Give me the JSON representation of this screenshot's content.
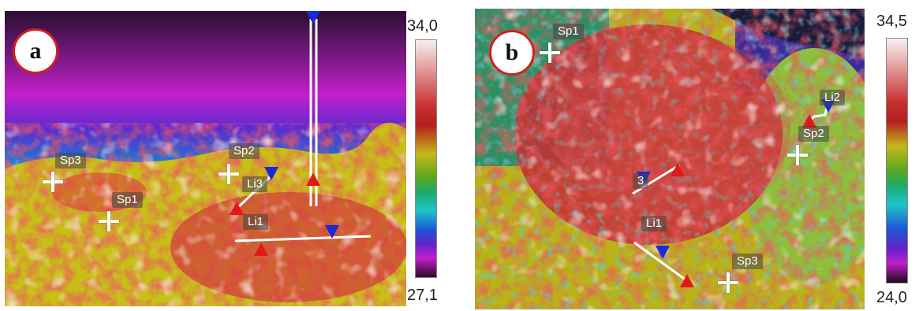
{
  "panels": [
    {
      "label": "a",
      "scale": {
        "max": "34,0",
        "min": "27,1"
      },
      "spots": [
        "Sp1",
        "Sp2",
        "Sp3"
      ],
      "lines": [
        "Li1",
        "Li3"
      ]
    },
    {
      "label": "b",
      "scale": {
        "max": "34,5",
        "min": "24,0"
      },
      "spots": [
        "Sp1",
        "Sp2",
        "Sp3"
      ],
      "lines": [
        "Li1",
        "Li2",
        "3"
      ]
    }
  ],
  "colors": {
    "badge_border": "#d21f1f",
    "marker_max": "#e01a1a",
    "marker_min": "#1a2ad8"
  }
}
